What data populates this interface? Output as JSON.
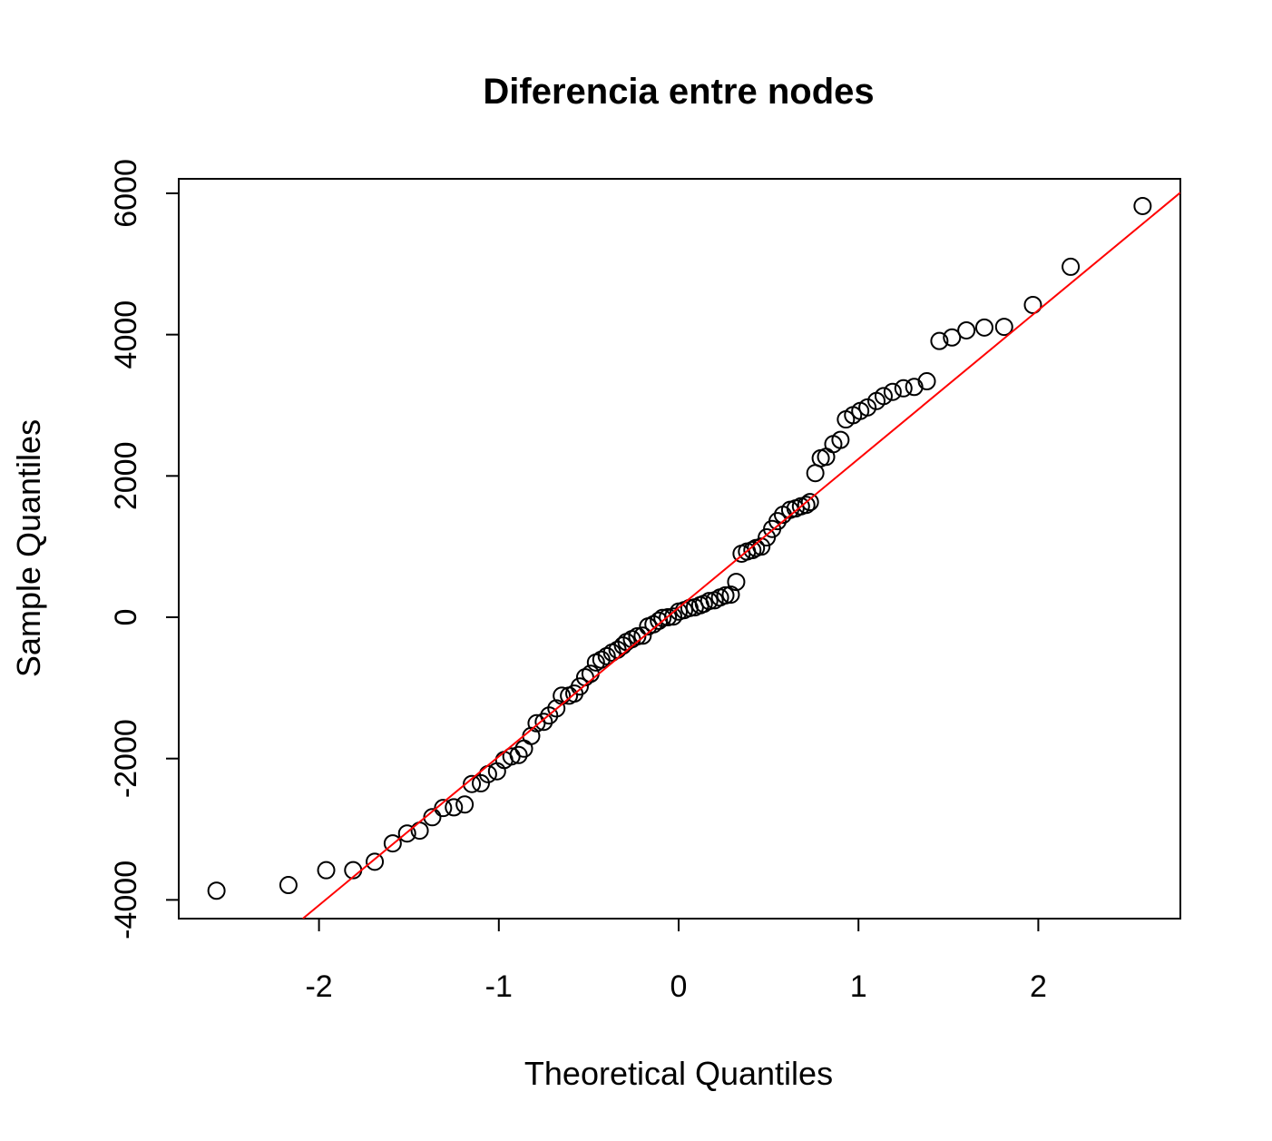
{
  "chart_data": {
    "type": "scatter",
    "title": "Diferencia entre nodes",
    "x_label": "Theoretical Quantiles",
    "y_label": "Sample Quantiles",
    "xlim": [
      -2.78,
      2.79
    ],
    "ylim": [
      -4265,
      6205
    ],
    "xticks": [
      -2,
      -1,
      0,
      1,
      2
    ],
    "yticks": [
      -4000,
      -2000,
      0,
      2000,
      4000,
      6000
    ],
    "point_color": "#000000",
    "x": [
      -2.57,
      -2.17,
      -1.96,
      -1.81,
      -1.69,
      -1.59,
      -1.51,
      -1.44,
      -1.37,
      -1.31,
      -1.25,
      -1.19,
      -1.15,
      -1.1,
      -1.06,
      -1.01,
      -0.97,
      -0.93,
      -0.89,
      -0.86,
      -0.82,
      -0.79,
      -0.75,
      -0.72,
      -0.68,
      -0.65,
      -0.61,
      -0.58,
      -0.55,
      -0.52,
      -0.49,
      -0.46,
      -0.43,
      -0.4,
      -0.37,
      -0.34,
      -0.31,
      -0.29,
      -0.26,
      -0.23,
      -0.2,
      -0.17,
      -0.14,
      -0.11,
      -0.09,
      -0.06,
      -0.03,
      0.0,
      0.03,
      0.06,
      0.09,
      0.12,
      0.14,
      0.17,
      0.2,
      0.23,
      0.26,
      0.29,
      0.32,
      0.35,
      0.38,
      0.41,
      0.43,
      0.46,
      0.49,
      0.52,
      0.55,
      0.58,
      0.62,
      0.65,
      0.68,
      0.71,
      0.73,
      0.76,
      0.79,
      0.82,
      0.86,
      0.9,
      0.93,
      0.97,
      1.01,
      1.05,
      1.1,
      1.14,
      1.19,
      1.25,
      1.31,
      1.38,
      1.45,
      1.52,
      1.6,
      1.7,
      1.81,
      1.97,
      2.18,
      2.58
    ],
    "values": [
      -3870,
      -3790,
      -3580,
      -3580,
      -3460,
      -3200,
      -3060,
      -3020,
      -2830,
      -2700,
      -2690,
      -2650,
      -2360,
      -2350,
      -2220,
      -2180,
      -2020,
      -1970,
      -1950,
      -1860,
      -1680,
      -1500,
      -1480,
      -1390,
      -1290,
      -1110,
      -1110,
      -1080,
      -980,
      -850,
      -800,
      -640,
      -600,
      -550,
      -500,
      -460,
      -400,
      -350,
      -310,
      -270,
      -260,
      -130,
      -100,
      -50,
      -10,
      0,
      10,
      80,
      100,
      130,
      140,
      170,
      190,
      230,
      240,
      280,
      310,
      320,
      500,
      900,
      930,
      950,
      980,
      1000,
      1130,
      1250,
      1360,
      1450,
      1520,
      1540,
      1570,
      1590,
      1630,
      2040,
      2250,
      2270,
      2450,
      2510,
      2800,
      2860,
      2920,
      2970,
      3060,
      3130,
      3190,
      3240,
      3260,
      3340,
      3910,
      3960,
      4060,
      4100,
      4110,
      4420,
      4960,
      5820
    ],
    "reference_line": {
      "color": "#ff0000",
      "x": [
        -2.09,
        2.79
      ],
      "y": [
        -4265,
        6010
      ]
    }
  }
}
